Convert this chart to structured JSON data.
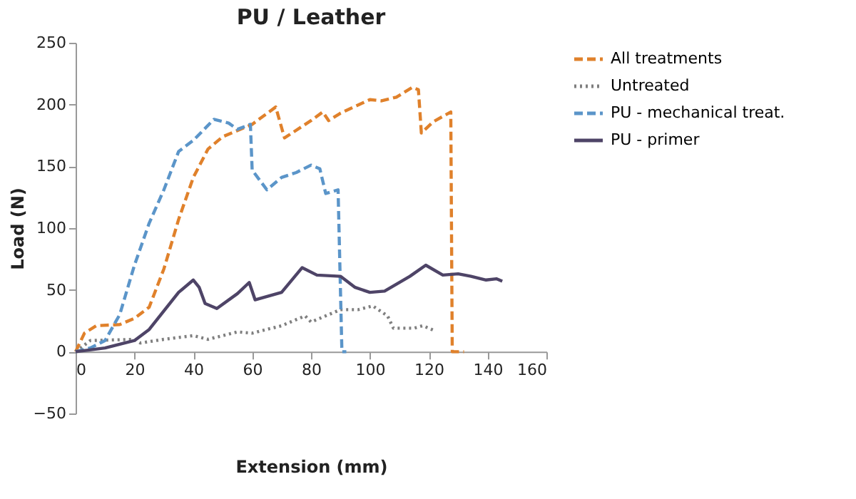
{
  "chart_data": {
    "type": "line",
    "title": "PU / Leather",
    "xlabel": "Extension (mm)",
    "ylabel": "Load (N)",
    "xlim": [
      0,
      160
    ],
    "xticks": [
      0,
      20,
      40,
      60,
      80,
      100,
      120,
      140,
      160
    ],
    "ylim": [
      -50,
      250
    ],
    "yticks": [
      -50,
      0,
      50,
      100,
      150,
      200,
      250
    ],
    "grid": false,
    "legend": "right",
    "marker": "none",
    "series": [
      {
        "name": "All treatments",
        "color": "#e0812b",
        "line_style": "dashed",
        "x": [
          0,
          3,
          7,
          15,
          20,
          25,
          30,
          35,
          40,
          45,
          50,
          60,
          68,
          71,
          80,
          84,
          86,
          90,
          100,
          104,
          109,
          114.5,
          116.5,
          117.5,
          121.5,
          127.5,
          128,
          132
        ],
        "values": [
          0,
          15,
          21,
          22,
          27,
          36,
          67,
          107,
          141,
          164,
          174,
          184,
          198,
          173,
          187,
          194,
          187,
          193,
          204,
          203,
          206,
          214,
          212,
          177,
          186,
          194,
          0,
          0
        ]
      },
      {
        "name": "Untreated",
        "color": "#7f7f7f",
        "line_style": "dotted",
        "x": [
          0,
          5,
          20,
          22,
          30,
          40,
          45,
          55,
          60,
          70,
          78,
          80,
          90,
          96,
          101,
          106,
          108,
          115,
          118,
          122
        ],
        "values": [
          0,
          9,
          10,
          7,
          10,
          13,
          10,
          16,
          15,
          21,
          29,
          24,
          34,
          34,
          37,
          29,
          19,
          19,
          21,
          17
        ]
      },
      {
        "name": "PU - mechanical treat.",
        "color": "#5b95c9",
        "line_style": "dashed",
        "x": [
          0,
          5,
          10,
          15,
          20,
          25,
          30,
          35,
          40,
          47,
          52,
          55,
          59.4,
          60,
          65,
          70,
          75,
          80,
          83,
          85,
          89.2,
          90.5,
          92
        ],
        "values": [
          0,
          3,
          9,
          30,
          70,
          104,
          131,
          162,
          171,
          188,
          185,
          180,
          184,
          147,
          131,
          141,
          145,
          151,
          148,
          128,
          131,
          0,
          0
        ]
      },
      {
        "name": "PU - primer",
        "color": "#4e4467",
        "line_style": "solid",
        "x": [
          0,
          10,
          20,
          25,
          30,
          35,
          40,
          42,
          44,
          48,
          55,
          59,
          61,
          70,
          77,
          82,
          90,
          95,
          100,
          105,
          113.6,
          119,
          124.8,
          130,
          134.4,
          139.5,
          143,
          145
        ],
        "values": [
          0,
          3,
          9,
          18,
          33,
          48,
          58,
          52,
          39,
          35,
          47,
          56,
          42,
          48,
          68,
          62,
          61,
          52,
          48,
          49,
          61,
          70,
          62,
          63,
          61,
          58,
          59,
          57
        ]
      }
    ]
  }
}
